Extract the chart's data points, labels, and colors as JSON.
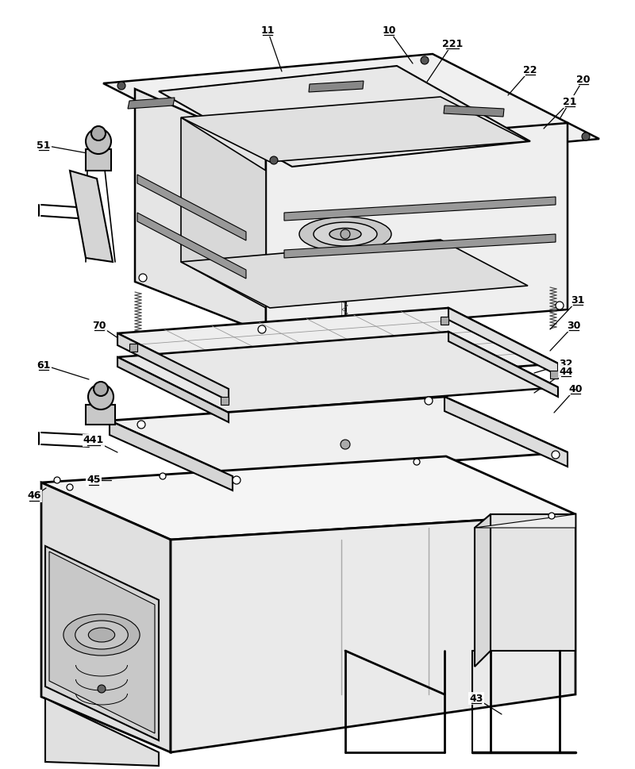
{
  "bg_color": "#ffffff",
  "line_color": "#000000",
  "line_width": 1.5,
  "annotations": [
    [
      "11",
      337,
      38,
      355,
      90
    ],
    [
      "10",
      490,
      38,
      520,
      80
    ],
    [
      "221",
      570,
      55,
      530,
      115
    ],
    [
      "22",
      668,
      88,
      640,
      120
    ],
    [
      "20",
      735,
      100,
      705,
      150
    ],
    [
      "21",
      718,
      128,
      685,
      162
    ],
    [
      "31",
      728,
      378,
      693,
      415
    ],
    [
      "30",
      723,
      410,
      693,
      442
    ],
    [
      "32",
      713,
      458,
      673,
      470
    ],
    [
      "44",
      713,
      468,
      673,
      495
    ],
    [
      "40",
      725,
      490,
      698,
      520
    ],
    [
      "441",
      118,
      555,
      148,
      570
    ],
    [
      "45",
      118,
      605,
      140,
      605
    ],
    [
      "46",
      43,
      625,
      58,
      615
    ],
    [
      "51",
      55,
      183,
      110,
      193
    ],
    [
      "61",
      55,
      460,
      112,
      478
    ],
    [
      "70",
      125,
      410,
      162,
      435
    ],
    [
      "43",
      600,
      880,
      632,
      900
    ]
  ]
}
